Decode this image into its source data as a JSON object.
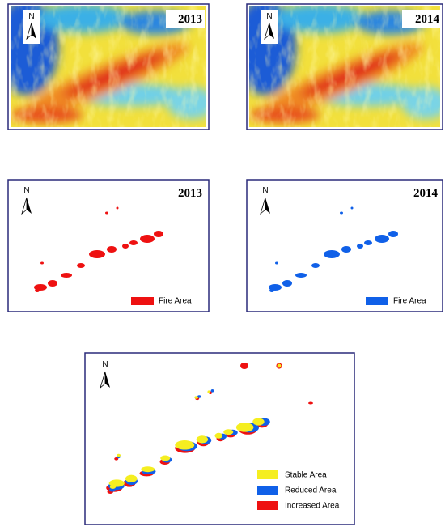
{
  "north": "N",
  "panels": [
    {
      "year": "2013"
    },
    {
      "year": "2014"
    },
    {
      "year": "2013",
      "legend": "Fire Area"
    },
    {
      "year": "2014",
      "legend": "Fire Area"
    }
  ],
  "change_map": {
    "legend": [
      "Stable Area",
      "Reduced Area",
      "Increased Area"
    ]
  }
}
